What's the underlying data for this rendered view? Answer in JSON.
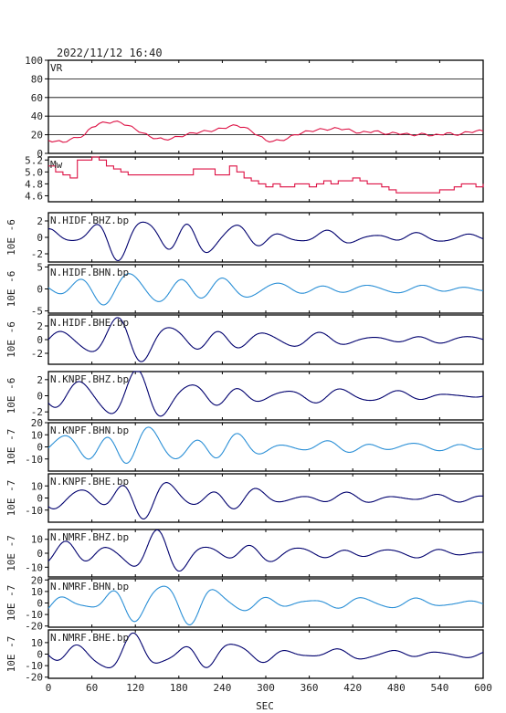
{
  "title": "2022/11/12  16:40",
  "chart_data": {
    "type": "line",
    "title": "2022/11/12  16:40",
    "xlabel": "SEC",
    "xlim": [
      0,
      600
    ],
    "xticks": [
      "0",
      "60",
      "120",
      "180",
      "240",
      "300",
      "360",
      "420",
      "480",
      "540",
      "600"
    ],
    "colors": {
      "vr": "#dd1144",
      "dark": "#00006e",
      "mid": "#1e6fd0",
      "light": "#2a8fd6"
    },
    "panels": [
      {
        "id": "vr",
        "label": "VR",
        "ylabel": "",
        "ylim": [
          0,
          100
        ],
        "yticks": [
          "0",
          "20",
          "40",
          "60",
          "80",
          "100"
        ],
        "grid": true,
        "color": "vr",
        "series": {
          "x": [
            0,
            10,
            20,
            30,
            40,
            50,
            60,
            70,
            80,
            90,
            100,
            110,
            120,
            130,
            140,
            150,
            160,
            170,
            180,
            190,
            200,
            210,
            220,
            230,
            240,
            250,
            260,
            270,
            280,
            290,
            300,
            310,
            320,
            330,
            340,
            350,
            360,
            370,
            380,
            390,
            400,
            410,
            420,
            430,
            440,
            450,
            460,
            470,
            480,
            490,
            500,
            510,
            520,
            530,
            540,
            550,
            560,
            570,
            580,
            590,
            600
          ],
          "y": [
            14,
            13,
            12,
            15,
            17,
            20,
            28,
            32,
            33,
            34,
            33,
            30,
            26,
            22,
            18,
            16,
            15,
            16,
            18,
            20,
            22,
            23,
            24,
            25,
            27,
            29,
            30,
            28,
            24,
            19,
            14,
            13,
            14,
            16,
            20,
            22,
            24,
            25,
            26,
            26,
            27,
            26,
            24,
            22,
            23,
            24,
            22,
            21,
            22,
            21,
            20,
            20,
            21,
            19,
            20,
            22,
            20,
            21,
            23,
            24,
            24
          ]
        }
      },
      {
        "id": "mw",
        "label": "Mw",
        "ylabel": "",
        "ylim": [
          4.5,
          5.25
        ],
        "yticks": [
          "4.6",
          "4.8",
          "5.0",
          "5.2"
        ],
        "grid": false,
        "color": "vr",
        "series": {
          "x": [
            0,
            10,
            20,
            30,
            40,
            50,
            60,
            70,
            80,
            90,
            100,
            110,
            120,
            130,
            140,
            150,
            160,
            170,
            180,
            190,
            200,
            210,
            220,
            230,
            240,
            250,
            260,
            270,
            280,
            290,
            300,
            310,
            320,
            330,
            340,
            350,
            360,
            370,
            380,
            390,
            400,
            410,
            420,
            430,
            440,
            450,
            460,
            470,
            480,
            490,
            500,
            510,
            520,
            530,
            540,
            550,
            560,
            570,
            580,
            590,
            600
          ],
          "y": [
            5.1,
            5.0,
            4.95,
            4.9,
            5.2,
            5.2,
            5.25,
            5.2,
            5.1,
            5.05,
            5.0,
            4.95,
            4.95,
            4.95,
            4.95,
            4.95,
            4.95,
            4.95,
            4.95,
            4.95,
            5.05,
            5.05,
            5.05,
            4.95,
            4.95,
            5.1,
            5.0,
            4.9,
            4.85,
            4.8,
            4.75,
            4.8,
            4.75,
            4.75,
            4.8,
            4.8,
            4.75,
            4.8,
            4.85,
            4.8,
            4.85,
            4.85,
            4.9,
            4.85,
            4.8,
            4.8,
            4.75,
            4.7,
            4.65,
            4.65,
            4.65,
            4.65,
            4.65,
            4.65,
            4.7,
            4.7,
            4.75,
            4.8,
            4.8,
            4.75,
            4.8
          ]
        }
      },
      {
        "id": "c1",
        "label": "N.HIDF.BHZ.bp",
        "ylabel": "10E -6",
        "ylim": [
          -3,
          3
        ],
        "yticks": [
          "-2",
          "0",
          "2"
        ],
        "amp": 2.1,
        "color": "dark",
        "seed": 3
      },
      {
        "id": "c2",
        "label": "N.HIDF.BHN.bp",
        "ylabel": "10E -6",
        "ylim": [
          -5.5,
          5.5
        ],
        "yticks": [
          "-5",
          "0",
          "5"
        ],
        "amp": 3.2,
        "color": "light",
        "seed": 7
      },
      {
        "id": "c3",
        "label": "N.HIDF.BHE.bp",
        "ylabel": "10E -6",
        "ylim": [
          -3.6,
          3.6
        ],
        "yticks": [
          "-2",
          "0",
          "2"
        ],
        "amp": 2.4,
        "color": "dark",
        "seed": 11
      },
      {
        "id": "c4",
        "label": "N.KNPF.BHZ.bp",
        "ylabel": "10E -6",
        "ylim": [
          -3,
          3
        ],
        "yticks": [
          "-2",
          "0",
          "2"
        ],
        "amp": 2.2,
        "color": "dark",
        "seed": 13
      },
      {
        "id": "c5",
        "label": "N.KNPF.BHN.bp",
        "ylabel": "10E -7",
        "ylim": [
          -20,
          20
        ],
        "yticks": [
          "-10",
          "0",
          "10",
          "20"
        ],
        "amp": 13,
        "color": "light",
        "seed": 17
      },
      {
        "id": "c6",
        "label": "N.KNPF.BHE.bp",
        "ylabel": "10E -7",
        "ylim": [
          -20,
          20
        ],
        "yticks": [
          "-10",
          "0",
          "10"
        ],
        "amp": 12,
        "color": "dark",
        "seed": 19
      },
      {
        "id": "c7",
        "label": "N.NMRF.BHZ.bp",
        "ylabel": "10E -7",
        "ylim": [
          -17,
          17
        ],
        "yticks": [
          "-10",
          "0",
          "10"
        ],
        "amp": 11,
        "color": "dark",
        "seed": 23
      },
      {
        "id": "c8",
        "label": "N.NMRF.BHN.bp",
        "ylabel": "10E -7",
        "ylim": [
          -21,
          21
        ],
        "yticks": [
          "-20",
          "-10",
          "0",
          "10",
          "20"
        ],
        "amp": 14,
        "color": "light",
        "seed": 29
      },
      {
        "id": "c9",
        "label": "N.NMRF.BHE.bp",
        "ylabel": "10E -7",
        "ylim": [
          -21,
          21
        ],
        "yticks": [
          "-20",
          "-10",
          "0",
          "10"
        ],
        "amp": 13,
        "color": "dark",
        "seed": 31
      }
    ]
  }
}
